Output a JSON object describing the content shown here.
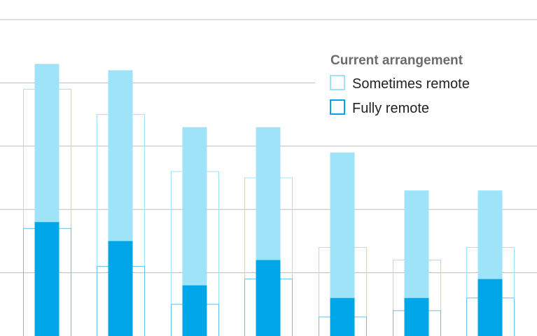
{
  "chart_data": {
    "type": "bar",
    "categories": [
      "",
      "",
      "",
      "",
      "",
      "",
      ""
    ],
    "legend": {
      "title": "Current arrangement",
      "placement": "top-right",
      "items": [
        {
          "name": "Sometimes remote",
          "color": "#9ee3f8",
          "style": "filled-light-outline"
        },
        {
          "name": "Fully remote",
          "color": "#00a7e8",
          "style": "filled-dark-outline"
        }
      ]
    },
    "series": [
      {
        "name": "Sometimes remote",
        "color": "#9ee3f8",
        "values": [
          43,
          42,
          33,
          33,
          29,
          23,
          23
        ]
      },
      {
        "name": "Fully remote",
        "color": "#00a7e8",
        "values": [
          18,
          15,
          8,
          12,
          6,
          6,
          9
        ]
      }
    ],
    "comparison_outlines": {
      "outer": [
        39,
        35,
        26,
        25,
        14,
        12,
        14
      ],
      "inner": [
        17,
        11,
        5,
        9,
        3,
        4,
        6
      ],
      "outer_color": "#9ee3f8",
      "inner_color": "#5fc4ea"
    },
    "ylim": [
      0,
      50
    ],
    "gridlines": [
      10,
      20,
      30,
      40,
      50
    ],
    "grid": true,
    "colors": {
      "grid": "#bdbdbd",
      "light": "#9ee3f8",
      "dark": "#00a7e8"
    }
  }
}
